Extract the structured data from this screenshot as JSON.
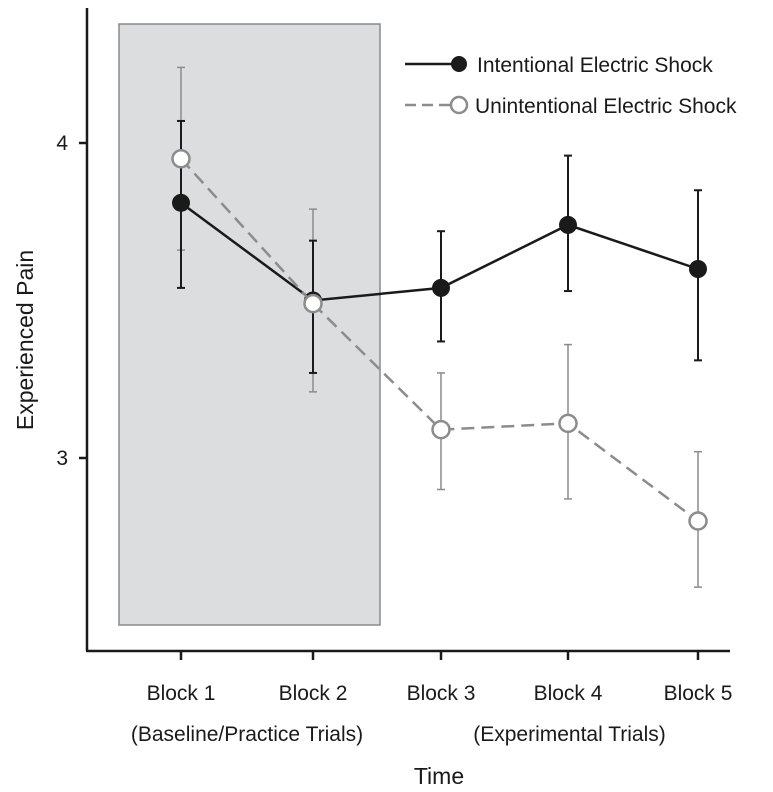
{
  "chart_data": {
    "type": "line",
    "title": "",
    "xlabel": "Time",
    "ylabel": "Experienced Pain",
    "categories": [
      "Block 1",
      "Block 2",
      "Block 3",
      "Block 4",
      "Block 5"
    ],
    "category_groups": [
      {
        "label": "(Baseline/Practice Trials)",
        "from": 0,
        "to": 1
      },
      {
        "label": "(Experimental Trials)",
        "from": 2,
        "to": 4
      }
    ],
    "highlighted_region": {
      "from": 0,
      "to": 1,
      "color": "#dcdddf"
    },
    "yticks": [
      3,
      4
    ],
    "ylim": [
      2.47,
      4.42
    ],
    "series": [
      {
        "name": "Intentional Electric Shock",
        "style": "solid",
        "marker": "filled-circle",
        "color": "#1a1a1a",
        "values": [
          3.81,
          3.5,
          3.54,
          3.74,
          3.6
        ],
        "err_low": [
          3.54,
          3.27,
          3.37,
          3.53,
          3.31
        ],
        "err_high": [
          4.07,
          3.69,
          3.72,
          3.96,
          3.85
        ]
      },
      {
        "name": "Unintentional Electric Shock",
        "style": "dashed",
        "marker": "open-circle",
        "color": "#8c8c8c",
        "values": [
          3.95,
          3.49,
          3.09,
          3.11,
          2.8
        ],
        "err_low": [
          3.66,
          3.21,
          2.9,
          2.87,
          2.59
        ],
        "err_high": [
          4.24,
          3.79,
          3.27,
          3.36,
          3.02
        ]
      }
    ],
    "legend_position": "top-right",
    "grid": false
  }
}
